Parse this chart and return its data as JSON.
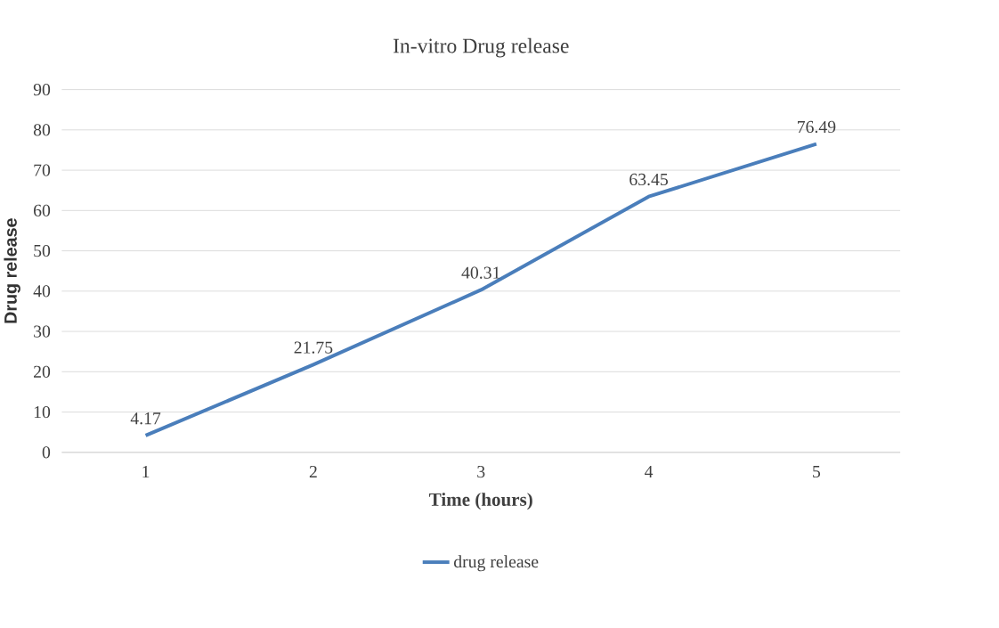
{
  "chart_data": {
    "type": "line",
    "title": "In-vitro Drug release",
    "xlabel": "Time (hours)",
    "ylabel": "Drug release",
    "categories": [
      "1",
      "2",
      "3",
      "4",
      "5"
    ],
    "series": [
      {
        "name": "drug release",
        "color": "#4a7ebb",
        "values": [
          4.17,
          21.75,
          40.31,
          63.45,
          76.49
        ]
      }
    ],
    "ylim": [
      0,
      90
    ],
    "yticks": [
      0,
      10,
      20,
      30,
      40,
      50,
      60,
      70,
      80,
      90
    ],
    "grid": "y",
    "legend": "bottom",
    "data_labels": true,
    "marker": "none",
    "line_style": "solid"
  }
}
